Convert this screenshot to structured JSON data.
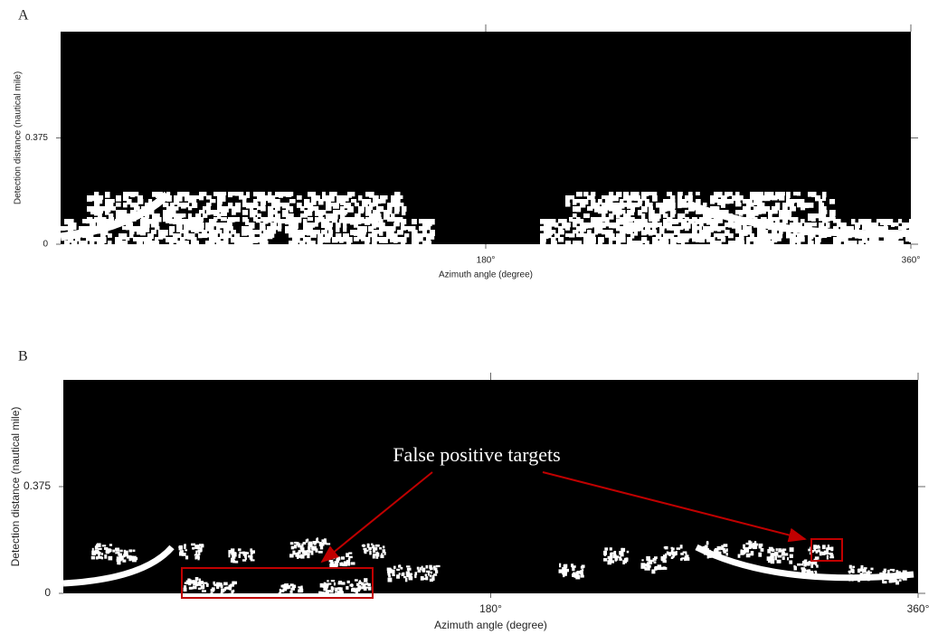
{
  "panels": [
    {
      "label": "A",
      "y_axis_label": "Detection distance (nautical mile)",
      "x_axis_label": "Azimuth angle (degree)",
      "xlim": [
        0,
        360
      ],
      "ylim": [
        0,
        0.75
      ],
      "xticks": [
        {
          "value": 180,
          "label": "180°"
        },
        {
          "value": 360,
          "label": "360°"
        }
      ],
      "yticks": [
        0,
        0.375
      ]
    },
    {
      "label": "B",
      "y_axis_label": "Detection distance (nautical mile)",
      "x_axis_label": "Azimuth angle (degree)",
      "xlim": [
        0,
        360
      ],
      "ylim": [
        0,
        0.75
      ],
      "xticks": [
        {
          "value": 180,
          "label": "180°"
        },
        {
          "value": 360,
          "label": "360°"
        }
      ],
      "yticks": [
        0,
        0.375
      ],
      "annotation": "False positive targets"
    }
  ]
}
